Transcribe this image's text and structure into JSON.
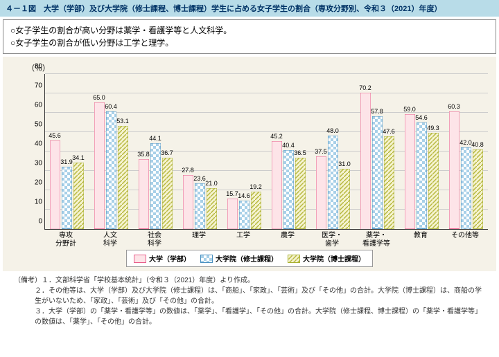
{
  "title": "４－１図　大学（学部）及び大学院（修士課程、博士課程）学生に占める女子学生の割合（専攻分野別、令和３（2021）年度）",
  "summary": [
    "○女子学生の割合が高い分野は薬学・看護学等と人文科学。",
    "○女子学生の割合が低い分野は工学と理学。"
  ],
  "ylabel": "（％）",
  "yaxis": {
    "max": 80,
    "step": 10
  },
  "colors": {
    "b1_fill": "#fde4e8",
    "b1_stroke": "#e85c8a",
    "b2_fill": "#d0e8f5",
    "b2_stroke": "#4a90c0",
    "b3_fill": "#f0edb8",
    "b3_stroke": "#a8b030",
    "bg": "#f5f2e8",
    "grid": "#cccccc"
  },
  "categories": [
    "専攻\n分野計",
    "人文\n科学",
    "社会\n科学",
    "理学",
    "工学",
    "農学",
    "医学・\n歯学",
    "薬学・\n看護学等",
    "教育",
    "その他等"
  ],
  "series": [
    {
      "name": "大学（学部）",
      "values": [
        45.6,
        65.0,
        35.8,
        27.8,
        15.7,
        45.2,
        37.5,
        70.2,
        59.0,
        60.3
      ]
    },
    {
      "name": "大学院（修士課程）",
      "values": [
        31.9,
        60.4,
        44.1,
        23.6,
        14.6,
        40.4,
        48.0,
        57.8,
        54.6,
        42.0
      ]
    },
    {
      "name": "大学院（博士課程）",
      "values": [
        34.1,
        53.1,
        36.7,
        21.0,
        19.2,
        36.5,
        31.0,
        47.6,
        49.3,
        40.8
      ]
    }
  ],
  "legend": [
    "大学（学部）",
    "大学院（修士課程）",
    "大学院（博士課程）"
  ],
  "notes_head": "（備考）",
  "notes": [
    "１．文部科学省「学校基本統計」（令和３（2021）年度）より作成。",
    "２．その他等は、大学（学部）及び大学院（修士課程）は、「商船」、「家政」、「芸術」及び「その他」の合計。大学院（博士課程）は、商船の学生がいないため、「家政」、「芸術」及び「その他」の合計。",
    "３．大学（学部）の「薬学・看護学等」の数値は、「薬学」、「看護学」、「その他」の合計。大学院（修士課程、博士課程）の「薬学・看護学等」の数値は、「薬学」、「その他」の合計。"
  ]
}
